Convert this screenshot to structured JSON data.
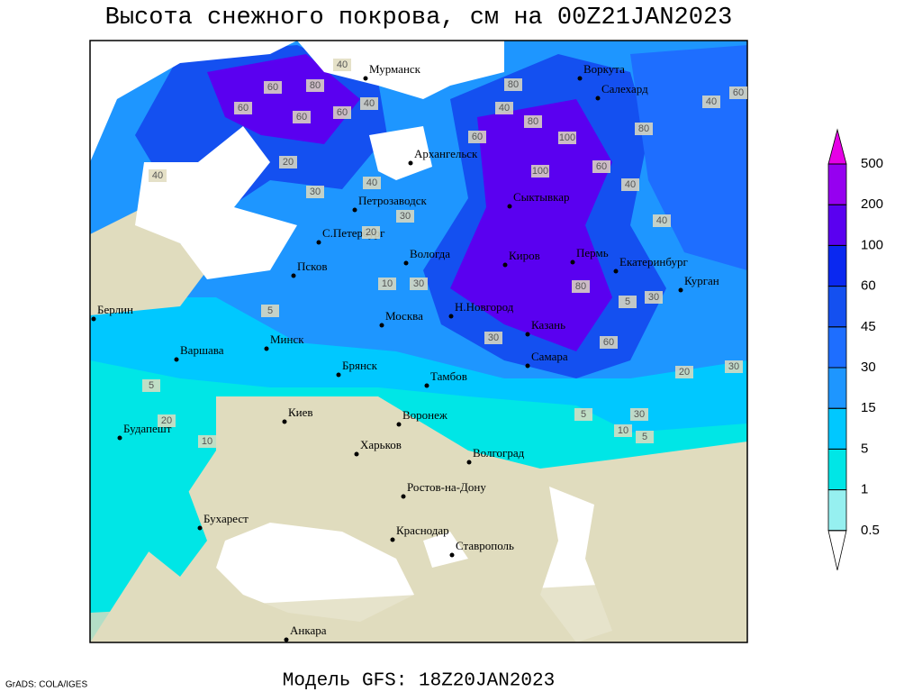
{
  "header": {
    "title": "Высота снежного покрова, см на 00Z21JAN2023"
  },
  "footer": {
    "model": "Модель GFS: 18Z20JAN2023",
    "credit": "GrADS: COLA/IGES"
  },
  "legend": {
    "levels": [
      0.5,
      1,
      5,
      15,
      30,
      45,
      60,
      100,
      200,
      500
    ],
    "colors": [
      "#ffffff",
      "#96f0f0",
      "#00e6e6",
      "#00c8ff",
      "#1e96ff",
      "#1e6eff",
      "#1450f0",
      "#0a28f0",
      "#5a00f0",
      "#9600f0",
      "#e600e6"
    ]
  },
  "cities": [
    "Мурманск",
    "Воркута",
    "Салехард",
    "Архангельск",
    "Петрозаводск",
    "С.Петербург",
    "Сыктывкар",
    "Вологда",
    "Киров",
    "Пермь",
    "Екатеринбург",
    "Курган",
    "Псков",
    "Берлин",
    "Н.Новгород",
    "Москва",
    "Казань",
    "Минск",
    "Варшава",
    "Брянск",
    "Самара",
    "Тамбов",
    "Киев",
    "Воронеж",
    "Будапешт",
    "Харьков",
    "Волгоград",
    "Ростов-на-Дону",
    "Бухарест",
    "Краснодар",
    "Ставрополь",
    "Анкара"
  ],
  "contour_labels": [
    "40",
    "60",
    "80",
    "60",
    "40",
    "60",
    "60",
    "20",
    "40",
    "30",
    "40",
    "80",
    "100",
    "100",
    "60",
    "80",
    "40",
    "60",
    "40",
    "40",
    "30",
    "20",
    "30",
    "10",
    "5",
    "80",
    "30",
    "60",
    "5",
    "30",
    "30",
    "20",
    "30",
    "10",
    "5",
    "5",
    "10",
    "20",
    "5",
    "80",
    "40",
    "60"
  ]
}
